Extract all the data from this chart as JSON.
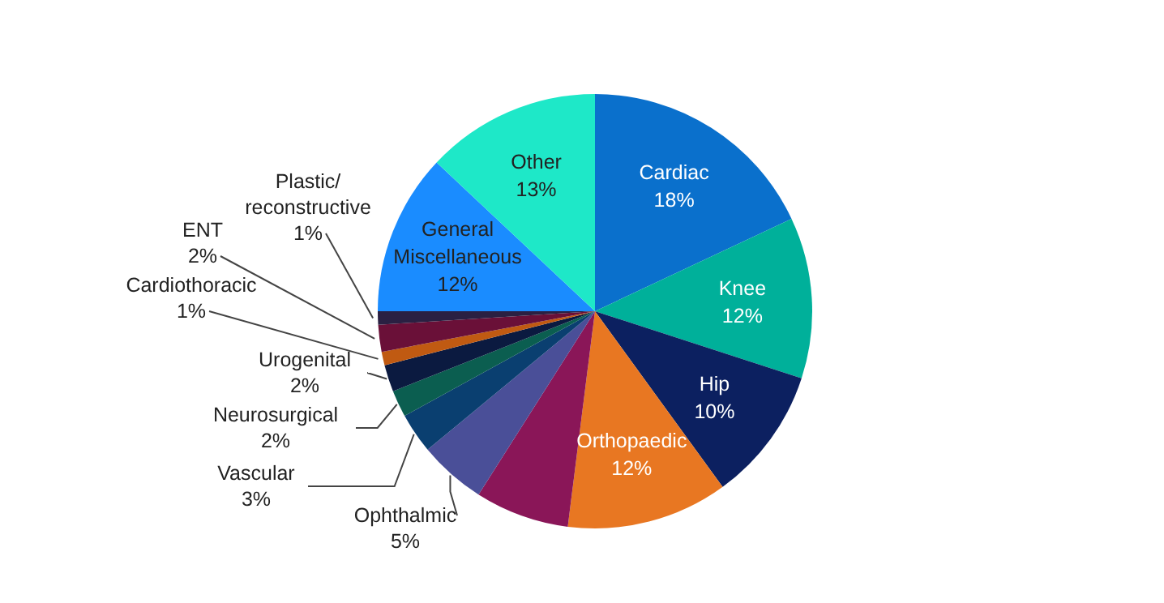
{
  "chart_data": {
    "type": "pie",
    "categories": [
      "Cardiac",
      "Knee",
      "Hip",
      "Orthopaedic",
      null,
      "Ophthalmic",
      "Vascular",
      "Neurosurgical",
      "Urogenital",
      "Cardiothoracic",
      "ENT",
      "Plastic/reconstructive",
      "General Miscellaneous",
      "Other"
    ],
    "values": [
      18,
      12,
      10,
      12,
      7,
      5,
      3,
      2,
      2,
      1,
      2,
      1,
      12,
      13
    ],
    "value_labels": [
      "18%",
      "12%",
      "10%",
      "12%",
      null,
      "5%",
      "3%",
      "2%",
      "2%",
      "1%",
      "2%",
      "1%",
      "12%",
      "13%"
    ],
    "colors": [
      "#0a70cc",
      "#00b09a",
      "#0c2060",
      "#e87722",
      "#8a1658",
      "#4a4f98",
      "#0a3f70",
      "#0b5e50",
      "#0b1a40",
      "#c05a12",
      "#6a1038",
      "#2a2042",
      "#1a8cff",
      "#1ee8c8"
    ],
    "legend": false
  }
}
